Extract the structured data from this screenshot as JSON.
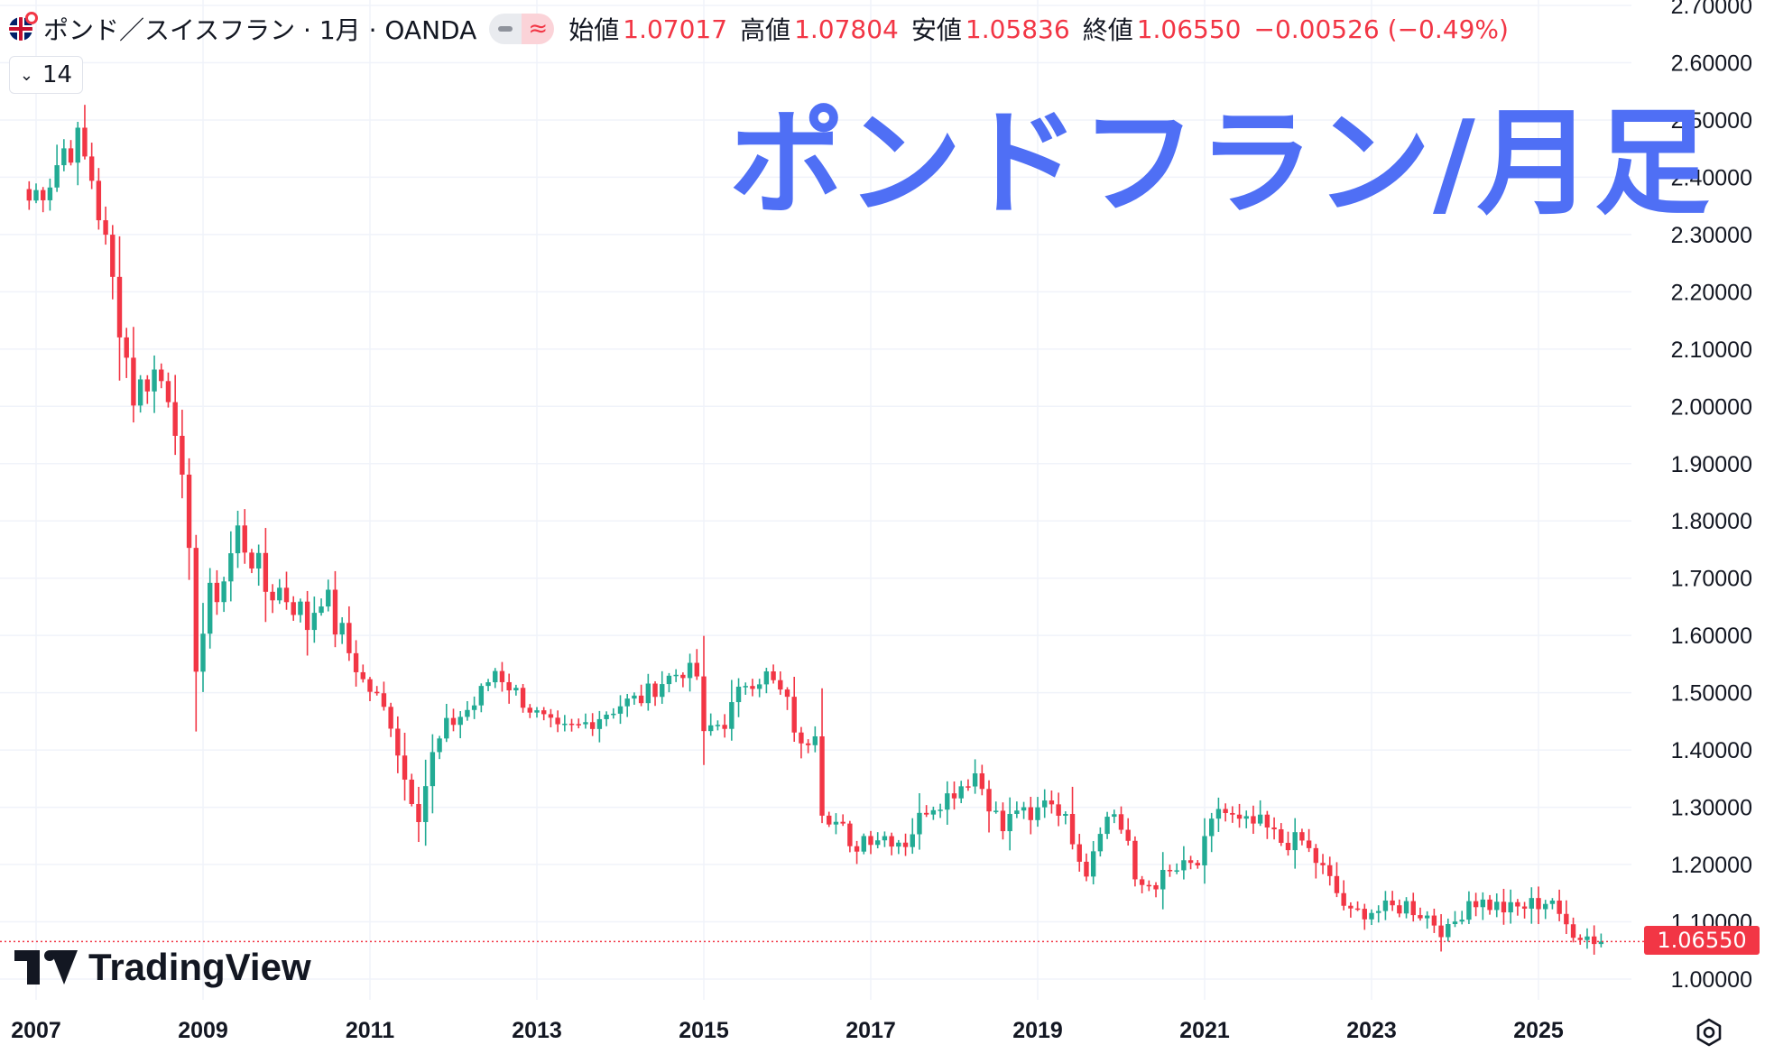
{
  "legend": {
    "symbol": "ポンド／スイスフラン · 1月 · OANDA",
    "approx_icon": "≈",
    "open_label": "始値",
    "open_value": "1.07017",
    "high_label": "高値",
    "high_value": "1.07804",
    "low_label": "安値",
    "low_value": "1.05836",
    "close_label": "終値",
    "close_value": "1.06550",
    "change": "−0.00526 (−0.49%)"
  },
  "indicator_collapse": {
    "count": "14"
  },
  "overlay_title": "ポンドフラン/月足",
  "branding": {
    "logo_text": "TradingView"
  },
  "colors": {
    "up": "#22ab94",
    "down": "#f23645",
    "title": "#4f6ff5",
    "grid": "#f0f3fa"
  },
  "chart_data": {
    "type": "candlestick",
    "interval": "monthly",
    "instrument": "GBPCHF",
    "current_price": "1.06550",
    "ylim": [
      1.0,
      2.7
    ],
    "y_ticks": [
      "1.00000",
      "1.10000",
      "1.20000",
      "1.30000",
      "1.40000",
      "1.50000",
      "1.60000",
      "1.70000",
      "1.80000",
      "1.90000",
      "2.00000",
      "2.10000",
      "2.20000",
      "2.30000",
      "2.40000",
      "2.50000",
      "2.60000",
      "2.70000"
    ],
    "x_ticks": [
      "2007",
      "2009",
      "2011",
      "2013",
      "2015",
      "2017",
      "2019",
      "2021",
      "2023",
      "2025"
    ],
    "anchors": [
      [
        "2006-12",
        2.36
      ],
      [
        "2007-03",
        2.4
      ],
      [
        "2007-05",
        2.45
      ],
      [
        "2007-07",
        2.46
      ],
      [
        "2007-09",
        2.4
      ],
      [
        "2007-11",
        2.28
      ],
      [
        "2008-01",
        2.15
      ],
      [
        "2008-03",
        2.02
      ],
      [
        "2008-05",
        2.05
      ],
      [
        "2008-06",
        2.06
      ],
      [
        "2008-08",
        2.03
      ],
      [
        "2008-09",
        1.98
      ],
      [
        "2008-10",
        1.85
      ],
      [
        "2008-11",
        1.72
      ],
      [
        "2008-12",
        1.55
      ],
      [
        "2009-02",
        1.66
      ],
      [
        "2009-04",
        1.7
      ],
      [
        "2009-06",
        1.78
      ],
      [
        "2009-08",
        1.74
      ],
      [
        "2009-10",
        1.68
      ],
      [
        "2009-12",
        1.68
      ],
      [
        "2010-02",
        1.66
      ],
      [
        "2010-04",
        1.62
      ],
      [
        "2010-06",
        1.68
      ],
      [
        "2010-08",
        1.62
      ],
      [
        "2010-10",
        1.57
      ],
      [
        "2010-12",
        1.52
      ],
      [
        "2011-02",
        1.49
      ],
      [
        "2011-04",
        1.45
      ],
      [
        "2011-06",
        1.35
      ],
      [
        "2011-08",
        1.29
      ],
      [
        "2011-10",
        1.39
      ],
      [
        "2011-12",
        1.44
      ],
      [
        "2012-04",
        1.48
      ],
      [
        "2012-07",
        1.54
      ],
      [
        "2012-10",
        1.5
      ],
      [
        "2013-01",
        1.46
      ],
      [
        "2013-04",
        1.43
      ],
      [
        "2013-07",
        1.44
      ],
      [
        "2013-10",
        1.46
      ],
      [
        "2014-01",
        1.48
      ],
      [
        "2014-04",
        1.49
      ],
      [
        "2014-07",
        1.52
      ],
      [
        "2014-10",
        1.54
      ],
      [
        "2014-12",
        1.53
      ],
      [
        "2015-01",
        1.42
      ],
      [
        "2015-02",
        1.44
      ],
      [
        "2015-04",
        1.45
      ],
      [
        "2015-07",
        1.52
      ],
      [
        "2015-10",
        1.53
      ],
      [
        "2015-12",
        1.5
      ],
      [
        "2016-01",
        1.48
      ],
      [
        "2016-03",
        1.4
      ],
      [
        "2016-05",
        1.44
      ],
      [
        "2016-06",
        1.3
      ],
      [
        "2016-09",
        1.26
      ],
      [
        "2016-10",
        1.22
      ],
      [
        "2016-12",
        1.25
      ],
      [
        "2017-03",
        1.25
      ],
      [
        "2017-06",
        1.24
      ],
      [
        "2017-09",
        1.3
      ],
      [
        "2017-12",
        1.32
      ],
      [
        "2018-02",
        1.34
      ],
      [
        "2018-04",
        1.36
      ],
      [
        "2018-06",
        1.31
      ],
      [
        "2018-08",
        1.26
      ],
      [
        "2018-10",
        1.3
      ],
      [
        "2018-12",
        1.27
      ],
      [
        "2019-02",
        1.32
      ],
      [
        "2019-04",
        1.3
      ],
      [
        "2019-06",
        1.25
      ],
      [
        "2019-08",
        1.19
      ],
      [
        "2019-10",
        1.27
      ],
      [
        "2019-12",
        1.29
      ],
      [
        "2020-02",
        1.24
      ],
      [
        "2020-03",
        1.16
      ],
      [
        "2020-06",
        1.17
      ],
      [
        "2020-09",
        1.19
      ],
      [
        "2020-12",
        1.2
      ],
      [
        "2021-03",
        1.3
      ],
      [
        "2021-06",
        1.27
      ],
      [
        "2021-09",
        1.27
      ],
      [
        "2021-12",
        1.24
      ],
      [
        "2022-03",
        1.24
      ],
      [
        "2022-06",
        1.19
      ],
      [
        "2022-09",
        1.13
      ],
      [
        "2022-10",
        1.11
      ],
      [
        "2022-12",
        1.12
      ],
      [
        "2023-03",
        1.12
      ],
      [
        "2023-06",
        1.13
      ],
      [
        "2023-09",
        1.11
      ],
      [
        "2023-12",
        1.08
      ],
      [
        "2024-03",
        1.14
      ],
      [
        "2024-06",
        1.13
      ],
      [
        "2024-09",
        1.12
      ],
      [
        "2024-12",
        1.13
      ],
      [
        "2025-03",
        1.14
      ],
      [
        "2025-04",
        1.1
      ],
      [
        "2025-07",
        1.08
      ],
      [
        "2025-09",
        1.07
      ],
      [
        "2025-10",
        1.0655
      ]
    ]
  }
}
